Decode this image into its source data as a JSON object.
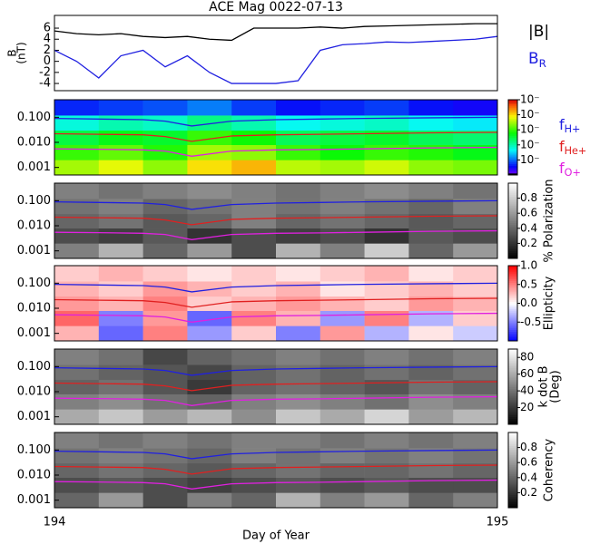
{
  "chart_data": [
    {
      "type": "line",
      "title": "ACE Mag 0022-07-13",
      "ylabel": [
        "B",
        "(nT)"
      ],
      "xlim": [
        194,
        195
      ],
      "ylim": [
        -5.3,
        8.3
      ],
      "yticks": [
        -4,
        -2,
        0,
        2,
        4,
        6
      ],
      "x": [
        194,
        194.05,
        194.1,
        194.15,
        194.2,
        194.25,
        194.3,
        194.35,
        194.4,
        194.45,
        194.5,
        194.55,
        194.6,
        194.65,
        194.7,
        194.75,
        194.8,
        194.85,
        194.9,
        194.95,
        195
      ],
      "series": [
        {
          "name": "|B|",
          "color": "#000000",
          "values": [
            5.5,
            5,
            4.8,
            5,
            4.5,
            4.3,
            4.5,
            4,
            3.8,
            6,
            6,
            6,
            6.2,
            6,
            6.3,
            6.4,
            6.5,
            6.6,
            6.7,
            6.8,
            6.8
          ]
        },
        {
          "name": "B",
          "subscript": "R",
          "color": "#2020e0",
          "values": [
            2,
            0,
            -3,
            1,
            2,
            -1,
            1,
            -2,
            -4,
            -4,
            -4,
            -3.5,
            2,
            3,
            3.2,
            3.5,
            3.4,
            3.6,
            3.8,
            4,
            4.5
          ]
        }
      ]
    },
    {
      "type": "spectrogram",
      "cmap": "rainbow",
      "clim": [
        -5,
        0
      ],
      "cticks": [
        {
          "value": -4,
          "label": "10⁻"
        },
        {
          "value": -3,
          "label": "10⁻"
        },
        {
          "value": -2,
          "label": "10⁻"
        },
        {
          "value": -1,
          "label": "10⁻"
        },
        {
          "value": 0,
          "label": "10⁻"
        }
      ],
      "xlim": [
        194,
        195
      ],
      "ylim": [
        0.0005,
        0.5
      ],
      "yticks": [
        {
          "value": 0.001,
          "label": "0.001"
        },
        {
          "value": 0.01,
          "label": "0.010"
        },
        {
          "value": 0.1,
          "label": "0.100"
        }
      ],
      "x_edges": [
        194,
        194.1,
        194.2,
        194.3,
        194.4,
        194.5,
        194.6,
        194.7,
        194.8,
        194.9,
        195
      ],
      "freq_edges": [
        0.0005,
        0.002,
        0.008,
        0.03,
        0.12,
        0.5
      ],
      "z": [
        [
          -1.5,
          -1.2,
          -1.6,
          -1,
          -0.8,
          -1.4,
          -1.5,
          -1.3,
          -1.6,
          -1.7
        ],
        [
          -2,
          -1.8,
          -2.1,
          -1.5,
          -1.6,
          -2,
          -2.2,
          -2,
          -2.1,
          -2.3
        ],
        [
          -2.5,
          -2.3,
          -2.4,
          -2,
          -2.2,
          -2.6,
          -2.5,
          -2.4,
          -2.6,
          -2.7
        ],
        [
          -3.2,
          -3,
          -3.1,
          -2.8,
          -3,
          -3.3,
          -3.2,
          -3.1,
          -3.3,
          -3.4
        ],
        [
          -4.3,
          -4.2,
          -4.1,
          -3.9,
          -4.2,
          -4.4,
          -4.3,
          -4.2,
          -4.4,
          -4.5
        ]
      ],
      "overlay": {
        "x": [
          194,
          194.1,
          194.2,
          194.25,
          194.31,
          194.4,
          194.5,
          194.6,
          194.7,
          194.85,
          195
        ],
        "series": [
          {
            "name": "f",
            "subscript": "H+",
            "color": "#2020e0",
            "values": [
              0.09,
              0.085,
              0.08,
              0.07,
              0.045,
              0.07,
              0.08,
              0.085,
              0.09,
              0.095,
              0.1
            ]
          },
          {
            "name": "f",
            "subscript": "He+",
            "color": "#e02020",
            "values": [
              0.022,
              0.021,
              0.02,
              0.017,
              0.011,
              0.018,
              0.02,
              0.021,
              0.022,
              0.024,
              0.025
            ]
          },
          {
            "name": "f",
            "subscript": "O+",
            "color": "#e020e0",
            "values": [
              0.0055,
              0.0053,
              0.005,
              0.0045,
              0.0028,
              0.0045,
              0.005,
              0.0052,
              0.0055,
              0.006,
              0.0063
            ]
          }
        ]
      }
    },
    {
      "type": "spectrogram",
      "cmap": "gray",
      "clim": [
        0,
        1
      ],
      "cticks": [
        0.2,
        0.4,
        0.6,
        0.8
      ],
      "clabel": "% Polarization",
      "xlim": [
        194,
        195
      ],
      "ylim": [
        0.0005,
        0.5
      ],
      "yticks": [
        {
          "value": 0.001,
          "label": "0.001"
        },
        {
          "value": 0.01,
          "label": "0.010"
        },
        {
          "value": 0.1,
          "label": "0.100"
        }
      ],
      "z": [
        [
          0.5,
          0.7,
          0.4,
          0.6,
          0.3,
          0.7,
          0.5,
          0.8,
          0.4,
          0.6
        ],
        [
          0.3,
          0.25,
          0.35,
          0.2,
          0.3,
          0.25,
          0.3,
          0.2,
          0.35,
          0.3
        ],
        [
          0.4,
          0.45,
          0.35,
          0.4,
          0.5,
          0.4,
          0.45,
          0.4,
          0.35,
          0.4
        ],
        [
          0.45,
          0.5,
          0.4,
          0.45,
          0.5,
          0.45,
          0.5,
          0.45,
          0.4,
          0.5
        ],
        [
          0.5,
          0.45,
          0.5,
          0.55,
          0.5,
          0.45,
          0.5,
          0.55,
          0.5,
          0.45
        ]
      ]
    },
    {
      "type": "spectrogram",
      "cmap": "bwr",
      "clim": [
        -1,
        1
      ],
      "cticks": [
        -0.5,
        {
          "value": 0,
          "label": "0.0"
        },
        0.5,
        {
          "value": 1,
          "label": "1.0"
        }
      ],
      "clabel": "Ellipticity",
      "xlim": [
        194,
        195
      ],
      "ylim": [
        0.0005,
        0.5
      ],
      "yticks": [
        {
          "value": 0.001,
          "label": "0.001"
        },
        {
          "value": 0.01,
          "label": "0.010"
        },
        {
          "value": 0.1,
          "label": "0.100"
        }
      ],
      "z": [
        [
          0.3,
          -0.6,
          0.5,
          -0.4,
          0.2,
          -0.5,
          0.4,
          -0.3,
          0.1,
          -0.2
        ],
        [
          0.6,
          -0.5,
          0.4,
          -0.6,
          0.5,
          0.3,
          -0.4,
          0.5,
          -0.3,
          0.2
        ],
        [
          0.4,
          0.3,
          0.5,
          0.2,
          0.3,
          0.4,
          0.3,
          0.2,
          0.4,
          0.3
        ],
        [
          0.3,
          0.2,
          0.4,
          0.3,
          0.2,
          0.3,
          0.1,
          0.2,
          0.3,
          0.2
        ],
        [
          0.2,
          0.3,
          0.2,
          0.1,
          0.2,
          0.1,
          0.2,
          0.3,
          0.1,
          0.2
        ]
      ]
    },
    {
      "type": "spectrogram",
      "cmap": "gray",
      "clim": [
        0,
        90
      ],
      "cticks": [
        20,
        40,
        60,
        80
      ],
      "clabel": [
        "k dot B",
        "(Deg)"
      ],
      "xlim": [
        194,
        195
      ],
      "ylim": [
        0.0005,
        0.5
      ],
      "yticks": [
        {
          "value": 0.001,
          "label": "0.001"
        },
        {
          "value": 0.01,
          "label": "0.010"
        },
        {
          "value": 0.1,
          "label": "0.100"
        }
      ],
      "z": [
        [
          60,
          70,
          55,
          65,
          50,
          70,
          60,
          75,
          55,
          65
        ],
        [
          45,
          50,
          40,
          35,
          45,
          50,
          45,
          40,
          50,
          45
        ],
        [
          35,
          40,
          30,
          20,
          35,
          40,
          35,
          30,
          40,
          35
        ],
        [
          40,
          35,
          30,
          25,
          35,
          40,
          35,
          40,
          35,
          40
        ],
        [
          45,
          40,
          25,
          35,
          40,
          45,
          40,
          45,
          40,
          45
        ]
      ]
    },
    {
      "type": "spectrogram",
      "cmap": "gray",
      "clim": [
        0,
        1
      ],
      "cticks": [
        0.2,
        0.4,
        0.6,
        0.8
      ],
      "clabel": "Coherency",
      "xlim": [
        194,
        195
      ],
      "ylim": [
        0.0005,
        0.5
      ],
      "yticks": [
        {
          "value": 0.001,
          "label": "0.001"
        },
        {
          "value": 0.01,
          "label": "0.010"
        },
        {
          "value": 0.1,
          "label": "0.100"
        }
      ],
      "xlabel": "Day of Year",
      "xticks": [
        194,
        195
      ],
      "z": [
        [
          0.4,
          0.6,
          0.3,
          0.5,
          0.4,
          0.7,
          0.5,
          0.6,
          0.4,
          0.5
        ],
        [
          0.3,
          0.35,
          0.3,
          0.25,
          0.3,
          0.35,
          0.3,
          0.35,
          0.3,
          0.3
        ],
        [
          0.4,
          0.45,
          0.4,
          0.35,
          0.4,
          0.45,
          0.4,
          0.4,
          0.45,
          0.4
        ],
        [
          0.45,
          0.5,
          0.45,
          0.4,
          0.5,
          0.45,
          0.5,
          0.45,
          0.5,
          0.45
        ],
        [
          0.5,
          0.45,
          0.5,
          0.45,
          0.5,
          0.5,
          0.45,
          0.5,
          0.45,
          0.5
        ]
      ]
    }
  ]
}
